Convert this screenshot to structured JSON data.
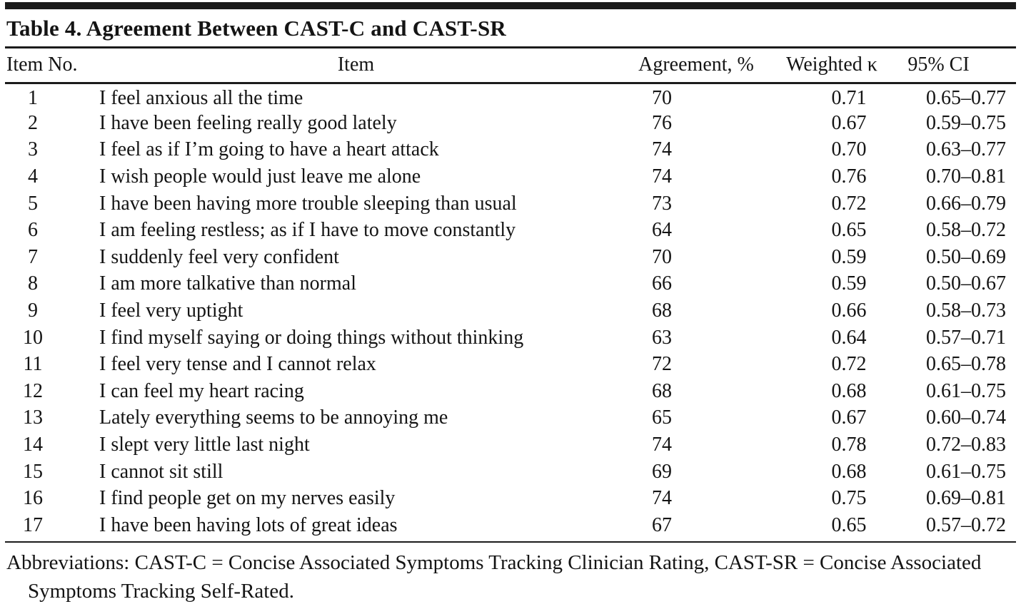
{
  "table": {
    "title": "Table 4. Agreement Between CAST-C and CAST-SR",
    "columns": {
      "item_no": "Item No.",
      "item": "Item",
      "agreement": "Agreement, %",
      "weighted_kappa": "Weighted κ",
      "ci": "95% CI"
    },
    "rows": [
      {
        "no": "1",
        "item": "I feel anxious all the time",
        "agreement": "70",
        "kappa": "0.71",
        "ci": "0.65–0.77"
      },
      {
        "no": "2",
        "item": "I have been feeling really good lately",
        "agreement": "76",
        "kappa": "0.67",
        "ci": "0.59–0.75"
      },
      {
        "no": "3",
        "item": "I feel as if I’m going to have a heart attack",
        "agreement": "74",
        "kappa": "0.70",
        "ci": "0.63–0.77"
      },
      {
        "no": "4",
        "item": "I wish people would just leave me alone",
        "agreement": "74",
        "kappa": "0.76",
        "ci": "0.70–0.81"
      },
      {
        "no": "5",
        "item": "I have been having more trouble sleeping than usual",
        "agreement": "73",
        "kappa": "0.72",
        "ci": "0.66–0.79"
      },
      {
        "no": "6",
        "item": "I am feeling restless; as if I have to move constantly",
        "agreement": "64",
        "kappa": "0.65",
        "ci": "0.58–0.72"
      },
      {
        "no": "7",
        "item": "I suddenly feel very confident",
        "agreement": "70",
        "kappa": "0.59",
        "ci": "0.50–0.69"
      },
      {
        "no": "8",
        "item": "I am more talkative than normal",
        "agreement": "66",
        "kappa": "0.59",
        "ci": "0.50–0.67"
      },
      {
        "no": "9",
        "item": "I feel very uptight",
        "agreement": "68",
        "kappa": "0.66",
        "ci": "0.58–0.73"
      },
      {
        "no": "10",
        "item": "I find myself saying or doing things without thinking",
        "agreement": "63",
        "kappa": "0.64",
        "ci": "0.57–0.71"
      },
      {
        "no": "11",
        "item": "I feel very tense and I cannot relax",
        "agreement": "72",
        "kappa": "0.72",
        "ci": "0.65–0.78"
      },
      {
        "no": "12",
        "item": "I can feel my heart racing",
        "agreement": "68",
        "kappa": "0.68",
        "ci": "0.61–0.75"
      },
      {
        "no": "13",
        "item": "Lately everything seems to be annoying me",
        "agreement": "65",
        "kappa": "0.67",
        "ci": "0.60–0.74"
      },
      {
        "no": "14",
        "item": "I slept very little last night",
        "agreement": "74",
        "kappa": "0.78",
        "ci": "0.72–0.83"
      },
      {
        "no": "15",
        "item": "I cannot sit still",
        "agreement": "69",
        "kappa": "0.68",
        "ci": "0.61–0.75"
      },
      {
        "no": "16",
        "item": "I find people get on my nerves easily",
        "agreement": "74",
        "kappa": "0.75",
        "ci": "0.69–0.81"
      },
      {
        "no": "17",
        "item": "I have been having lots of great ideas",
        "agreement": "67",
        "kappa": "0.65",
        "ci": "0.57–0.72"
      }
    ],
    "footnote": "Abbreviations: CAST-C = Concise Associated Symptoms Tracking Clinician Rating, CAST-SR = Concise Associated Symptoms Tracking Self-Rated."
  }
}
